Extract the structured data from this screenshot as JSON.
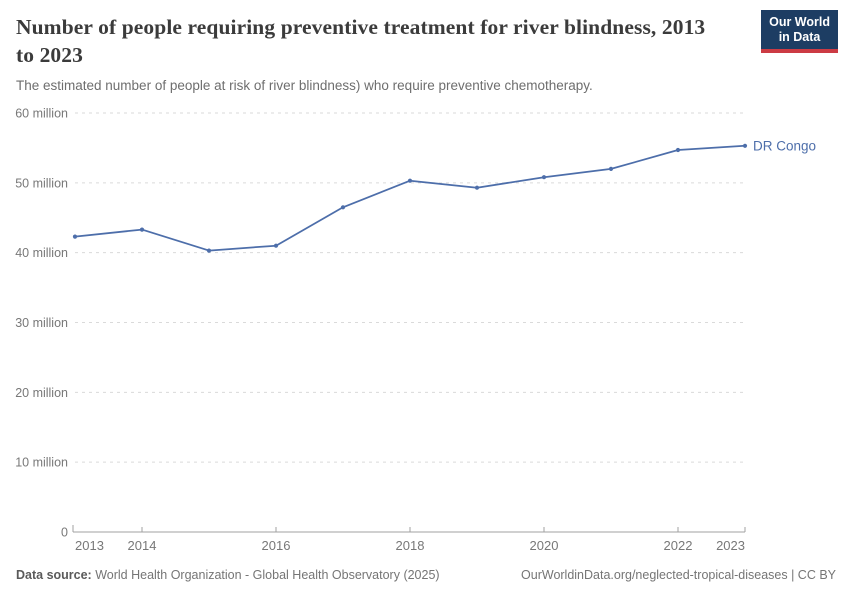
{
  "header": {
    "title": "Number of people requiring preventive treatment for river blindness, 2013 to 2023",
    "subtitle": "The estimated number of people at risk of river blindness) who require preventive chemotherapy.",
    "logo": {
      "line1": "Our World",
      "line2": "in Data"
    }
  },
  "chart_data": {
    "type": "line",
    "title": "Number of people requiring preventive treatment for river blindness, 2013 to 2023",
    "x": [
      2013,
      2014,
      2015,
      2016,
      2017,
      2018,
      2019,
      2020,
      2021,
      2022,
      2023
    ],
    "series": [
      {
        "name": "DR Congo",
        "values": [
          42.3,
          43.3,
          40.3,
          41.0,
          46.5,
          50.3,
          49.3,
          50.8,
          52.0,
          54.7,
          55.3
        ]
      }
    ],
    "unit": "million",
    "xlim": [
      2013,
      2023
    ],
    "ylim": [
      0,
      60
    ],
    "x_tick_labels": [
      2013,
      2014,
      2016,
      2018,
      2020,
      2022,
      2023
    ],
    "y_tick_values": [
      0,
      10,
      20,
      30,
      40,
      50,
      60
    ],
    "y_tick_suffix": " million",
    "grid": "horizontal-dashed",
    "legend_position": "end-of-line-label"
  },
  "footer": {
    "source_label": "Data source:",
    "source_text": " World Health Organization - Global Health Observatory (2025)",
    "link": "OurWorldinData.org/neglected-tropical-diseases | CC BY"
  },
  "colors": {
    "series_blue": "#4d6eaa",
    "gridline": "#dadada",
    "axis": "#a1a1a1",
    "tick_label": "#787878",
    "logo_navy": "#1d3d63",
    "logo_red": "#cc3b44",
    "title_text": "#3b3b3b",
    "subtitle_text": "#6e6e6e"
  }
}
